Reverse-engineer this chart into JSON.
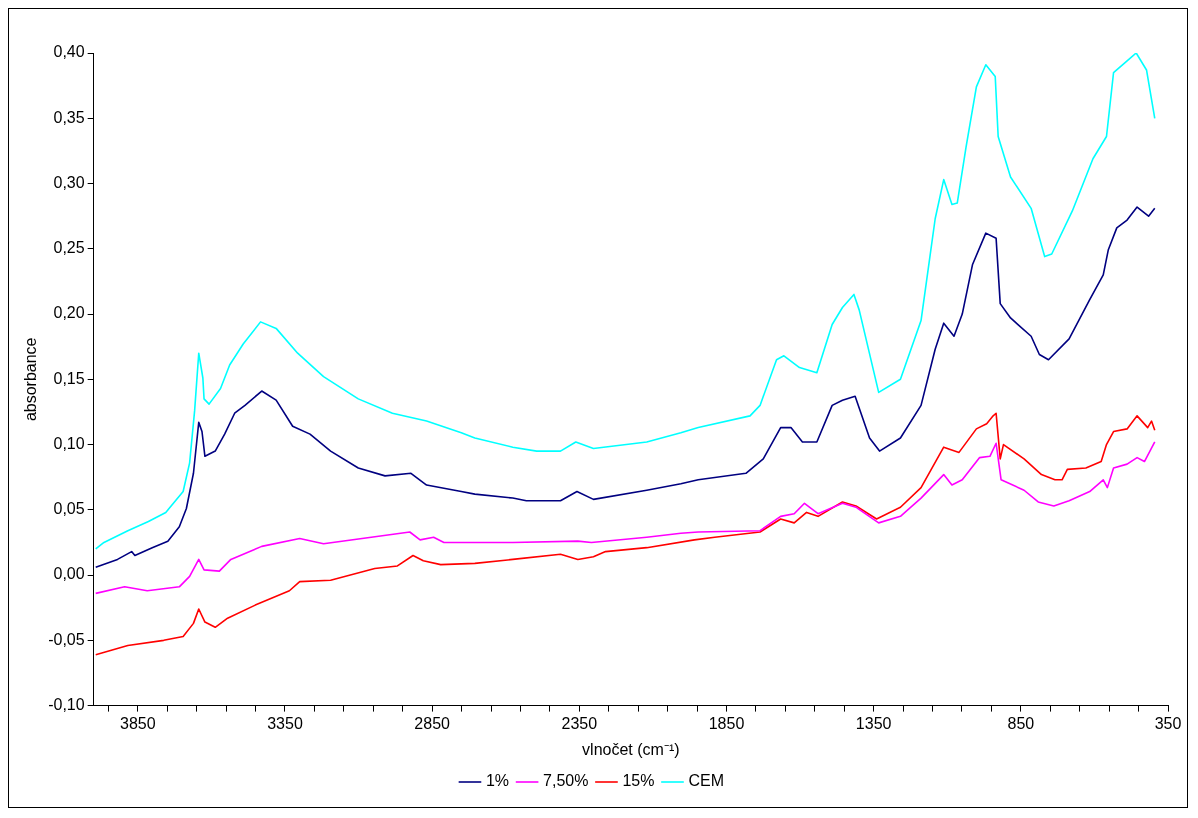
{
  "chart_data": {
    "type": "line",
    "xlabel": "vlnočet (cm⁻¹)",
    "ylabel": "absorbance",
    "xlim": [
      4000,
      350
    ],
    "xticks": [
      {
        "value": 3950,
        "label": null
      },
      3850,
      {
        "value": 3750,
        "label": null
      },
      {
        "value": 3650,
        "label": null
      },
      {
        "value": 3550,
        "label": null
      },
      {
        "value": 3450,
        "label": null
      },
      3350,
      {
        "value": 3250,
        "label": null
      },
      {
        "value": 3150,
        "label": null
      },
      {
        "value": 3050,
        "label": null
      },
      {
        "value": 2950,
        "label": null
      },
      2850,
      {
        "value": 2750,
        "label": null
      },
      {
        "value": 2650,
        "label": null
      },
      {
        "value": 2550,
        "label": null
      },
      {
        "value": 2450,
        "label": null
      },
      2350,
      {
        "value": 2250,
        "label": null
      },
      {
        "value": 2150,
        "label": null
      },
      {
        "value": 2050,
        "label": null
      },
      {
        "value": 1950,
        "label": null
      },
      1850,
      {
        "value": 1750,
        "label": null
      },
      {
        "value": 1650,
        "label": null
      },
      {
        "value": 1550,
        "label": null
      },
      {
        "value": 1450,
        "label": null
      },
      1350,
      {
        "value": 1250,
        "label": null
      },
      {
        "value": 1150,
        "label": null
      },
      {
        "value": 1050,
        "label": null
      },
      {
        "value": 950,
        "label": null
      },
      850,
      {
        "value": 750,
        "label": null
      },
      {
        "value": 650,
        "label": null
      },
      {
        "value": 550,
        "label": null
      },
      {
        "value": 450,
        "label": null
      },
      350
    ],
    "ylim": [
      -0.1,
      0.4
    ],
    "yticks": [
      {
        "value": -0.1,
        "label": "-0,10"
      },
      {
        "value": -0.05,
        "label": "-0,05"
      },
      {
        "value": 0,
        "label": "0,00"
      },
      {
        "value": 0.05,
        "label": "0,05"
      },
      {
        "value": 0.1,
        "label": "0,10"
      },
      {
        "value": 0.15,
        "label": "0,15"
      },
      {
        "value": 0.2,
        "label": "0,20"
      },
      {
        "value": 0.25,
        "label": "0,25"
      },
      {
        "value": 0.3,
        "label": "0,30"
      },
      {
        "value": 0.35,
        "label": "0,35"
      },
      {
        "value": 0.4,
        "label": "0,40"
      }
    ],
    "grid": false,
    "legend": "bottom",
    "marker": "none",
    "line_style": "solid",
    "series": [
      {
        "name": "1%",
        "color": "#000080",
        "x": [
          3993,
          3919,
          3871,
          3860,
          3801,
          3748,
          3709,
          3685,
          3661,
          3643,
          3632,
          3622,
          3587,
          3555,
          3521,
          3486,
          3429,
          3380,
          3324,
          3265,
          3195,
          3101,
          3010,
          2922,
          2869,
          2751,
          2705,
          2576,
          2530,
          2414,
          2358,
          2302,
          2121,
          2005,
          1946,
          1784,
          1725,
          1666,
          1631,
          1592,
          1543,
          1491,
          1456,
          1413,
          1364,
          1330,
          1259,
          1189,
          1141,
          1112,
          1077,
          1049,
          1014,
          969,
          934,
          920,
          885,
          815,
          787,
          756,
          686,
          616,
          570,
          553,
          524,
          489,
          455,
          416,
          395
        ],
        "values": [
          0.006,
          0.012,
          0.018,
          0.015,
          0.021,
          0.026,
          0.037,
          0.051,
          0.078,
          0.117,
          0.11,
          0.091,
          0.095,
          0.108,
          0.124,
          0.13,
          0.141,
          0.134,
          0.114,
          0.108,
          0.095,
          0.082,
          0.076,
          0.078,
          0.069,
          0.064,
          0.062,
          0.059,
          0.057,
          0.057,
          0.064,
          0.058,
          0.065,
          0.07,
          0.073,
          0.078,
          0.089,
          0.113,
          0.113,
          0.102,
          0.102,
          0.13,
          0.134,
          0.137,
          0.105,
          0.095,
          0.105,
          0.13,
          0.173,
          0.193,
          0.183,
          0.2,
          0.238,
          0.262,
          0.258,
          0.208,
          0.197,
          0.183,
          0.169,
          0.165,
          0.181,
          0.211,
          0.23,
          0.249,
          0.266,
          0.272,
          0.282,
          0.275,
          0.281
        ]
      },
      {
        "name": "7,50%",
        "color": "#ff00ff",
        "x": [
          3993,
          3895,
          3818,
          3709,
          3674,
          3643,
          3625,
          3573,
          3534,
          3429,
          3300,
          3219,
          2926,
          2891,
          2845,
          2810,
          2705,
          2576,
          2355,
          2309,
          2121,
          2005,
          1946,
          1736,
          1666,
          1620,
          1585,
          1539,
          1456,
          1410,
          1333,
          1259,
          1189,
          1112,
          1084,
          1049,
          990,
          955,
          934,
          917,
          839,
          791,
          738,
          686,
          616,
          570,
          556,
          535,
          489,
          455,
          430,
          395
        ],
        "values": [
          -0.014,
          -0.009,
          -0.012,
          -0.009,
          -0.001,
          0.012,
          0.004,
          0.003,
          0.012,
          0.022,
          0.028,
          0.024,
          0.033,
          0.027,
          0.029,
          0.025,
          0.025,
          0.025,
          0.026,
          0.025,
          0.029,
          0.032,
          0.033,
          0.034,
          0.045,
          0.047,
          0.055,
          0.047,
          0.055,
          0.052,
          0.04,
          0.045,
          0.059,
          0.077,
          0.069,
          0.073,
          0.09,
          0.091,
          0.101,
          0.073,
          0.065,
          0.056,
          0.053,
          0.057,
          0.064,
          0.073,
          0.067,
          0.082,
          0.085,
          0.09,
          0.087,
          0.102
        ]
      },
      {
        "name": "15%",
        "color": "#ff0000",
        "x": [
          3993,
          3884,
          3762,
          3696,
          3661,
          3643,
          3622,
          3587,
          3545,
          3451,
          3335,
          3300,
          3195,
          3045,
          2968,
          2915,
          2880,
          2821,
          2705,
          2576,
          2414,
          2355,
          2302,
          2261,
          2121,
          1959,
          1890,
          1736,
          1666,
          1620,
          1578,
          1539,
          1456,
          1410,
          1340,
          1259,
          1189,
          1112,
          1060,
          1001,
          966,
          944,
          934,
          920,
          909,
          839,
          780,
          734,
          710,
          692,
          629,
          577,
          559,
          535,
          489,
          455,
          419,
          406,
          395
        ],
        "values": [
          -0.061,
          -0.054,
          -0.05,
          -0.047,
          -0.037,
          -0.026,
          -0.036,
          -0.04,
          -0.033,
          -0.023,
          -0.012,
          -0.005,
          -0.004,
          0.005,
          0.007,
          0.015,
          0.011,
          0.008,
          0.009,
          0.012,
          0.016,
          0.012,
          0.014,
          0.018,
          0.021,
          0.027,
          0.029,
          0.033,
          0.043,
          0.04,
          0.048,
          0.045,
          0.056,
          0.053,
          0.043,
          0.052,
          0.067,
          0.098,
          0.094,
          0.112,
          0.116,
          0.122,
          0.124,
          0.089,
          0.1,
          0.089,
          0.077,
          0.073,
          0.073,
          0.081,
          0.082,
          0.087,
          0.1,
          0.11,
          0.112,
          0.122,
          0.113,
          0.118,
          0.111
        ]
      },
      {
        "name": "CEM",
        "color": "#00ffff",
        "x": [
          3993,
          3965,
          3884,
          3814,
          3755,
          3696,
          3674,
          3657,
          3643,
          3629,
          3625,
          3608,
          3569,
          3538,
          3492,
          3433,
          3380,
          3307,
          3219,
          3101,
          2985,
          2869,
          2751,
          2705,
          2576,
          2495,
          2414,
          2362,
          2302,
          2121,
          2005,
          1946,
          1770,
          1736,
          1680,
          1655,
          1602,
          1543,
          1491,
          1456,
          1417,
          1399,
          1333,
          1259,
          1189,
          1141,
          1112,
          1084,
          1066,
          1036,
          1001,
          969,
          937,
          927,
          885,
          815,
          769,
          745,
          675,
          605,
          559,
          535,
          489,
          458,
          423,
          395
        ],
        "values": [
          0.02,
          0.025,
          0.034,
          0.041,
          0.048,
          0.064,
          0.086,
          0.126,
          0.17,
          0.151,
          0.135,
          0.131,
          0.143,
          0.161,
          0.177,
          0.194,
          0.189,
          0.17,
          0.152,
          0.135,
          0.124,
          0.118,
          0.109,
          0.105,
          0.098,
          0.095,
          0.095,
          0.102,
          0.097,
          0.102,
          0.109,
          0.113,
          0.122,
          0.13,
          0.165,
          0.168,
          0.159,
          0.155,
          0.192,
          0.205,
          0.215,
          0.203,
          0.14,
          0.15,
          0.195,
          0.273,
          0.303,
          0.284,
          0.285,
          0.328,
          0.374,
          0.391,
          0.382,
          0.336,
          0.305,
          0.281,
          0.244,
          0.246,
          0.279,
          0.319,
          0.336,
          0.385,
          0.394,
          0.4,
          0.387,
          0.35
        ]
      }
    ]
  }
}
